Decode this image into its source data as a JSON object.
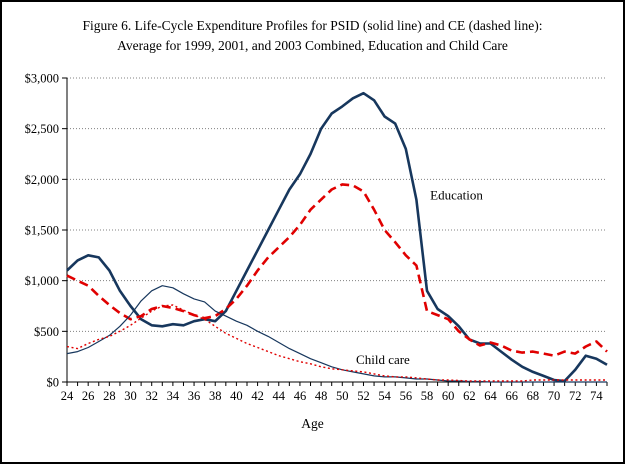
{
  "figure": {
    "title_line1": "Figure 6. Life-Cycle Expenditure Profiles for PSID (solid line) and CE (dashed line):",
    "title_line2": "Average for 1999, 2001, and 2003 Combined, Education and Child Care"
  },
  "chart_data": {
    "type": "line",
    "title": "Figure 6. Life-Cycle Expenditure Profiles for PSID (solid line) and CE (dashed line): Average for 1999, 2001, and 2003 Combined, Education and Child Care",
    "xlabel": "Age",
    "ylabel": "",
    "ylim": [
      0,
      3000
    ],
    "ytick_step": 500,
    "xtick_label_step": 2,
    "grid": "horizontal-dotted",
    "grid_color": "#808080",
    "x": [
      24,
      25,
      26,
      27,
      28,
      29,
      30,
      31,
      32,
      33,
      34,
      35,
      36,
      37,
      38,
      39,
      40,
      41,
      42,
      43,
      44,
      45,
      46,
      47,
      48,
      49,
      50,
      51,
      52,
      53,
      54,
      55,
      56,
      57,
      58,
      59,
      60,
      61,
      62,
      63,
      64,
      65,
      66,
      67,
      68,
      69,
      70,
      71,
      72,
      73,
      74,
      75
    ],
    "series": [
      {
        "name": "Education PSID",
        "source": "PSID",
        "color": "#17375D",
        "style": "solid",
        "width": 2.6,
        "values": [
          1100,
          1200,
          1250,
          1230,
          1100,
          900,
          750,
          620,
          560,
          550,
          570,
          560,
          600,
          620,
          600,
          700,
          900,
          1100,
          1300,
          1500,
          1700,
          1900,
          2050,
          2250,
          2500,
          2650,
          2720,
          2800,
          2850,
          2780,
          2620,
          2550,
          2300,
          1800,
          900,
          720,
          650,
          550,
          420,
          380,
          380,
          300,
          220,
          150,
          100,
          60,
          20,
          10,
          120,
          260,
          230,
          170
        ]
      },
      {
        "name": "Education CE",
        "source": "CE",
        "color": "#E00000",
        "style": "dashed",
        "width": 2.6,
        "values": [
          1050,
          1000,
          950,
          850,
          760,
          680,
          620,
          650,
          720,
          750,
          730,
          700,
          660,
          630,
          650,
          720,
          820,
          950,
          1100,
          1230,
          1330,
          1430,
          1550,
          1700,
          1800,
          1900,
          1950,
          1940,
          1880,
          1700,
          1500,
          1380,
          1250,
          1150,
          700,
          660,
          620,
          500,
          420,
          360,
          390,
          360,
          310,
          290,
          300,
          280,
          260,
          300,
          280,
          350,
          400,
          300
        ]
      },
      {
        "name": "Child care PSID",
        "source": "PSID",
        "color": "#17375D",
        "style": "solid",
        "width": 1.2,
        "values": [
          280,
          300,
          340,
          400,
          460,
          550,
          660,
          800,
          900,
          950,
          930,
          870,
          820,
          790,
          700,
          650,
          600,
          560,
          500,
          450,
          390,
          330,
          280,
          230,
          190,
          150,
          120,
          100,
          80,
          60,
          50,
          50,
          40,
          30,
          30,
          20,
          10,
          10,
          5,
          5,
          0,
          0,
          0,
          0,
          0,
          0,
          0,
          0,
          0,
          0,
          0,
          0
        ]
      },
      {
        "name": "Child care CE",
        "source": "CE",
        "color": "#E00000",
        "style": "dotted",
        "width": 1.4,
        "values": [
          350,
          330,
          380,
          420,
          450,
          500,
          560,
          630,
          700,
          750,
          760,
          710,
          660,
          620,
          550,
          480,
          430,
          380,
          340,
          300,
          260,
          230,
          200,
          180,
          150,
          130,
          120,
          110,
          100,
          80,
          60,
          50,
          50,
          40,
          30,
          20,
          20,
          15,
          10,
          10,
          10,
          10,
          10,
          10,
          20,
          20,
          20,
          20,
          20,
          20,
          20,
          20
        ]
      }
    ],
    "annotations": [
      {
        "text": "Education",
        "age": 58.3,
        "value": 1800
      },
      {
        "text": "Child care",
        "age": 51.3,
        "value": 180
      }
    ]
  }
}
